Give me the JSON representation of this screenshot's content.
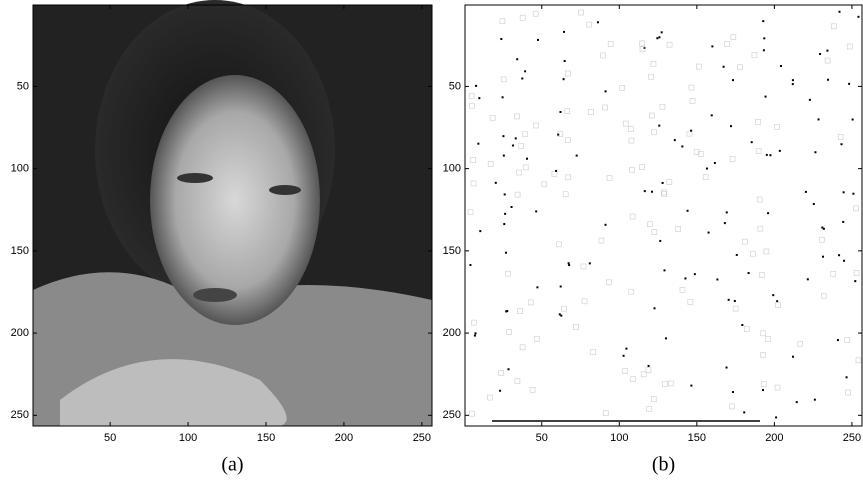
{
  "chart_data": [
    {
      "type": "image",
      "caption": "(a)",
      "xlim": [
        0.5,
        256.5
      ],
      "ylim": [
        256.5,
        0.5
      ],
      "xticks": [
        50,
        100,
        150,
        200,
        250
      ],
      "yticks": [
        50,
        100,
        150,
        200,
        250
      ]
    },
    {
      "type": "image",
      "caption": "(b)",
      "xlim": [
        0.5,
        256.5
      ],
      "ylim": [
        256.5,
        0.5
      ],
      "xticks": [
        50,
        100,
        150,
        200,
        250
      ],
      "yticks": [
        50,
        100,
        150,
        200,
        250
      ]
    }
  ]
}
